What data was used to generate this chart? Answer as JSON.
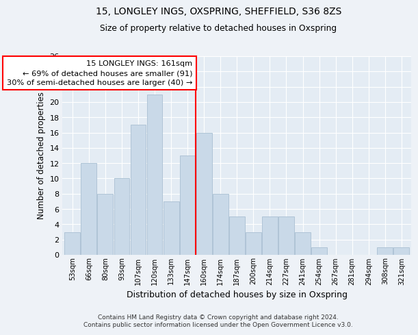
{
  "title1": "15, LONGLEY INGS, OXSPRING, SHEFFIELD, S36 8ZS",
  "title2": "Size of property relative to detached houses in Oxspring",
  "xlabel": "Distribution of detached houses by size in Oxspring",
  "ylabel": "Number of detached properties",
  "bins": [
    "53sqm",
    "66sqm",
    "80sqm",
    "93sqm",
    "107sqm",
    "120sqm",
    "133sqm",
    "147sqm",
    "160sqm",
    "174sqm",
    "187sqm",
    "200sqm",
    "214sqm",
    "227sqm",
    "241sqm",
    "254sqm",
    "267sqm",
    "281sqm",
    "294sqm",
    "308sqm",
    "321sqm"
  ],
  "values": [
    3,
    12,
    8,
    10,
    17,
    21,
    7,
    13,
    16,
    8,
    5,
    3,
    5,
    5,
    3,
    1,
    0,
    0,
    0,
    1,
    1
  ],
  "bar_color": "#c9d9e8",
  "bar_edgecolor": "#afc4d6",
  "redline_bin_index": 8,
  "ylim": [
    0,
    26
  ],
  "yticks": [
    0,
    2,
    4,
    6,
    8,
    10,
    12,
    14,
    16,
    18,
    20,
    22,
    24,
    26
  ],
  "annotation_text": "15 LONGLEY INGS: 161sqm\n← 69% of detached houses are smaller (91)\n30% of semi-detached houses are larger (40) →",
  "footer1": "Contains HM Land Registry data © Crown copyright and database right 2024.",
  "footer2": "Contains public sector information licensed under the Open Government Licence v3.0.",
  "bg_color": "#eef2f7",
  "plot_bg_color": "#e4ecf4"
}
